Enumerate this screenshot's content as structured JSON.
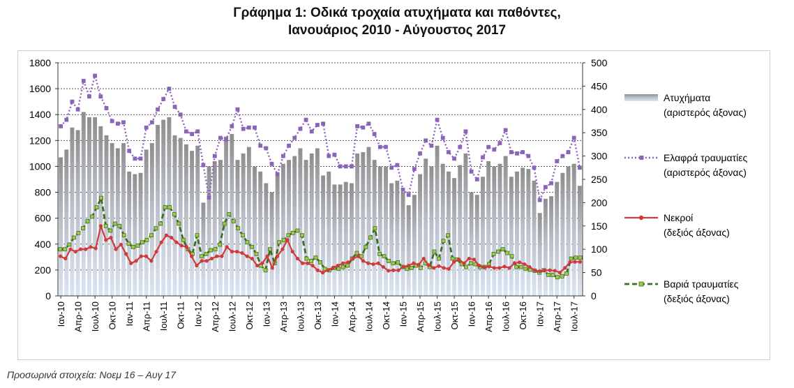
{
  "title_line1": "Γράφημα 1: Οδικά τροχαία ατυχήματα και παθόντες,",
  "title_line2": "Ιανουάριος 2010 - Αύγουστος 2017",
  "footnote": "Προσωρινά στοιχεία: Νοεμ 16 – Αυγ 17",
  "colors": {
    "bars": "#a8a8a8",
    "slight": "#8a64b8",
    "deaths": "#d03a3a",
    "serious": "#3b6e22",
    "serious_marker": "#a3c94a"
  },
  "chart_data": {
    "type": "bar",
    "x_tick_labels": [
      "Ιαν-10",
      "Απρ-10",
      "Ιουλ-10",
      "Οκτ-10",
      "Ιαν-11",
      "Απρ-11",
      "Ιουλ-11",
      "Οκτ-11",
      "Ιαν-12",
      "Απρ-12",
      "Ιουλ-12",
      "Οκτ-12",
      "Ιαν-13",
      "Απρ-13",
      "Ιουλ-13",
      "Οκτ-13",
      "Ιαν-14",
      "Απρ-14",
      "Ιουλ-14",
      "Οκτ-14",
      "Ιαν-15",
      "Απρ-15",
      "Ιουλ-15",
      "Οκτ-15",
      "Ιαν-16",
      "Απρ-16",
      "Ιουλ-16",
      "Οκτ-16",
      "Ιαν-17",
      "Απρ-17",
      "Ιουλ-17"
    ],
    "left_axis": {
      "ylim": [
        0,
        1800
      ],
      "ticks": [
        "0",
        "200",
        "400",
        "600",
        "800",
        "1000",
        "1200",
        "1400",
        "1600",
        "1800"
      ]
    },
    "right_axis": {
      "ylim": [
        0,
        500
      ],
      "ticks": [
        "0",
        "50",
        "100",
        "150",
        "200",
        "250",
        "300",
        "350",
        "400",
        "450",
        "500"
      ]
    },
    "legend_position": "right",
    "series": [
      {
        "name": "Ατυχήματα",
        "name_line2": "(αριστερός άξονας)",
        "type": "bar",
        "axis": "left",
        "values": [
          1070,
          1130,
          1300,
          1280,
          1420,
          1380,
          1380,
          1310,
          1240,
          1180,
          1140,
          1180,
          960,
          940,
          950,
          1130,
          1180,
          1320,
          1360,
          1380,
          1240,
          1220,
          1170,
          1120,
          1160,
          720,
          1000,
          1040,
          1050,
          1230,
          1250,
          1050,
          1100,
          1150,
          1000,
          960,
          870,
          800,
          940,
          1020,
          1050,
          1080,
          1140,
          1050,
          1100,
          1140,
          930,
          960,
          860,
          860,
          880,
          870,
          1100,
          1110,
          1150,
          1050,
          1000,
          1000,
          870,
          890,
          800,
          700,
          780,
          940,
          1060,
          1000,
          1160,
          1020,
          960,
          910,
          1010,
          1100,
          800,
          780,
          920,
          1040,
          1000,
          1020,
          1080,
          920,
          960,
          990,
          980,
          890,
          640,
          750,
          770,
          880,
          950,
          1000,
          1020,
          850
        ]
      },
      {
        "name": "Ελαφρά τραυματίες",
        "name_line2": "(αριστερός άξονας)",
        "type": "line",
        "axis": "left",
        "values": [
          1310,
          1360,
          1500,
          1440,
          1660,
          1540,
          1700,
          1540,
          1450,
          1350,
          1330,
          1340,
          1120,
          1060,
          1060,
          1300,
          1340,
          1440,
          1520,
          1600,
          1460,
          1400,
          1270,
          1250,
          1270,
          1010,
          760,
          1080,
          1220,
          1210,
          1310,
          1440,
          1290,
          1300,
          1300,
          1160,
          1140,
          1020,
          940,
          1080,
          1160,
          1220,
          1290,
          1360,
          1270,
          1320,
          1330,
          1080,
          1090,
          1000,
          1000,
          1000,
          1310,
          1300,
          1330,
          1250,
          1150,
          1150,
          990,
          1010,
          820,
          780,
          980,
          1100,
          1200,
          1160,
          1360,
          1220,
          1110,
          1060,
          1150,
          1270,
          960,
          900,
          1070,
          1150,
          1130,
          1180,
          1280,
          1110,
          1100,
          1110,
          1080,
          990,
          740,
          840,
          870,
          1040,
          1080,
          1110,
          1220,
          990
        ]
      },
      {
        "name": "Νεκροί",
        "name_line2": "(δεξιός άξονας)",
        "type": "line",
        "axis": "right",
        "values": [
          85,
          80,
          100,
          95,
          100,
          100,
          105,
          102,
          150,
          120,
          125,
          100,
          110,
          90,
          70,
          75,
          85,
          85,
          75,
          95,
          115,
          130,
          125,
          115,
          108,
          105,
          85,
          65,
          75,
          75,
          80,
          85,
          85,
          105,
          95,
          95,
          92,
          85,
          80,
          65,
          70,
          85,
          60,
          85,
          100,
          120,
          95,
          80,
          70,
          70,
          65,
          55,
          50,
          55,
          60,
          65,
          70,
          72,
          80,
          85,
          75,
          70,
          68,
          70,
          62,
          54,
          55,
          55,
          63,
          65,
          70,
          67,
          80,
          66,
          60,
          64,
          60,
          58,
          73,
          78,
          70,
          80,
          78,
          65,
          61,
          63,
          60,
          60,
          63,
          60,
          70,
          72,
          68,
          62,
          55,
          53,
          55,
          55,
          54,
          50,
          60,
          72,
          73,
          73
        ]
      },
      {
        "name": "Βαριά τραυματίες",
        "name_line2": "(δεξιός άξονας)",
        "type": "line",
        "axis": "right",
        "values": [
          100,
          100,
          110,
          125,
          135,
          145,
          160,
          170,
          190,
          210,
          150,
          140,
          155,
          150,
          130,
          112,
          105,
          108,
          115,
          120,
          130,
          145,
          155,
          190,
          190,
          175,
          155,
          120,
          100,
          90,
          130,
          85,
          90,
          98,
          100,
          110,
          155,
          175,
          160,
          145,
          130,
          115,
          105,
          90,
          65,
          55,
          100,
          70,
          115,
          120,
          130,
          135,
          140,
          130,
          80,
          75,
          82,
          72,
          58,
          55,
          60,
          58,
          62,
          65,
          80,
          92,
          85,
          105,
          125,
          145,
          90,
          85,
          75,
          70,
          72,
          62,
          58,
          60,
          65,
          60,
          70,
          62,
          95,
          80,
          118,
          130,
          80,
          78,
          68,
          62,
          70,
          68,
          62,
          62,
          68,
          90,
          95,
          100,
          92,
          85,
          62,
          62,
          58,
          56,
          54,
          50,
          55,
          45,
          45,
          40,
          42,
          48,
          80,
          82,
          82
        ]
      }
    ]
  }
}
